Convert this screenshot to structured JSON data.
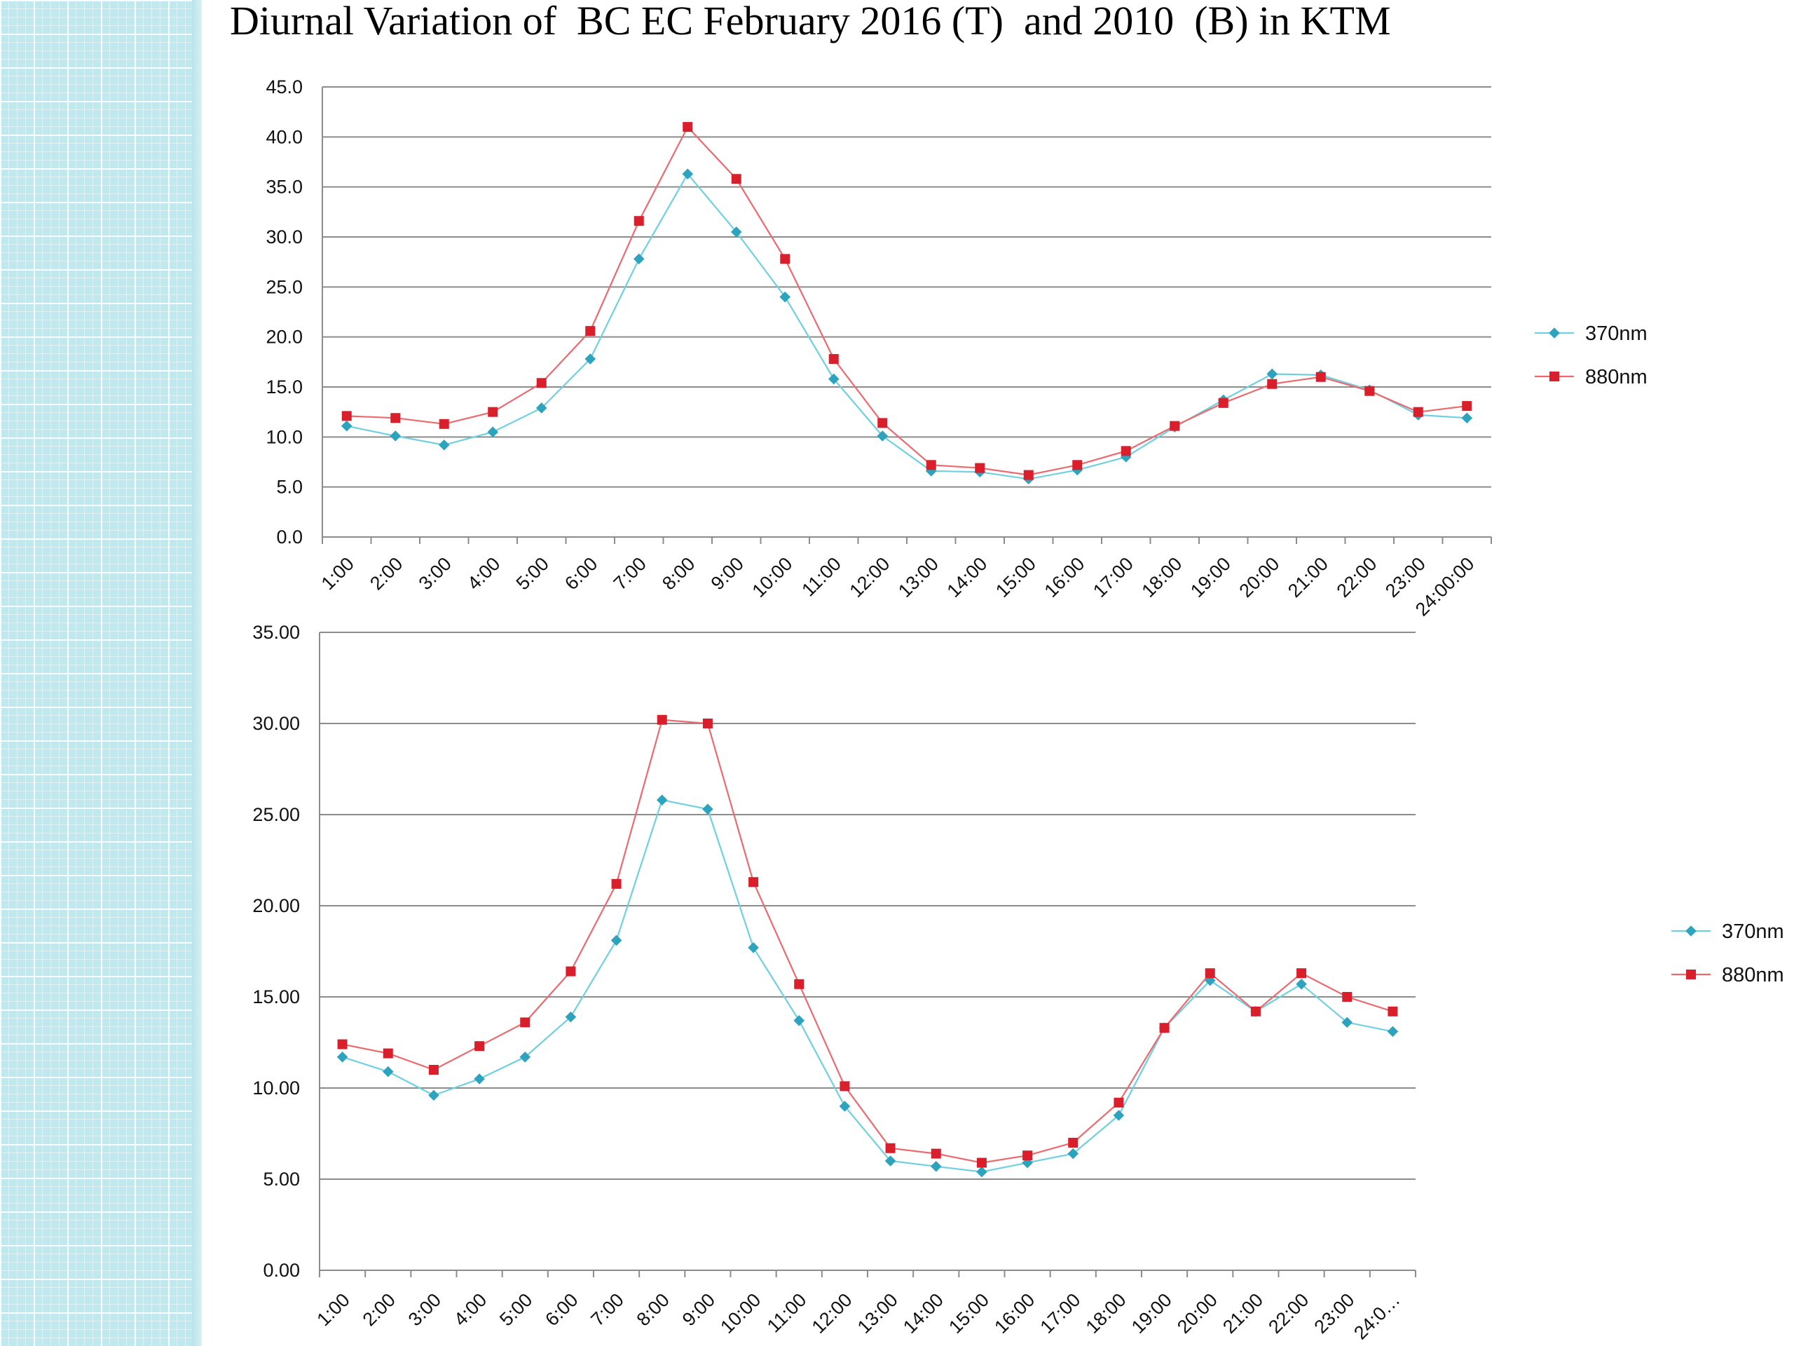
{
  "title": "Diurnal Variation of  BC EC February 2016 (T)  and 2010  (B) in KTM",
  "colors": {
    "s370": "#2ea3bd",
    "s370_line": "#6fd0e0",
    "s880": "#d91f2b",
    "s880_line": "#ec6a6f",
    "grid": "#8c8c8c",
    "sidebar": "#bfe9ef"
  },
  "chart_data": [
    {
      "type": "line",
      "title": "",
      "xlabel": "",
      "ylabel": "",
      "ylim": [
        0,
        45
      ],
      "grid": true,
      "legend": "right",
      "y_ticks": [
        "0.0",
        "5.0",
        "10.0",
        "15.0",
        "20.0",
        "25.0",
        "30.0",
        "35.0",
        "40.0",
        "45.0"
      ],
      "categories": [
        "1:00",
        "2:00",
        "3:00",
        "4:00",
        "5:00",
        "6:00",
        "7:00",
        "8:00",
        "9:00",
        "10:00",
        "11:00",
        "12:00",
        "13:00",
        "14:00",
        "15:00",
        "16:00",
        "17:00",
        "18:00",
        "19:00",
        "20:00",
        "21:00",
        "22:00",
        "23:00",
        "24:00:00"
      ],
      "series": [
        {
          "name": "370nm",
          "values": [
            11.1,
            10.1,
            9.2,
            10.5,
            12.9,
            17.8,
            27.8,
            36.3,
            30.5,
            24.0,
            15.8,
            10.1,
            6.6,
            6.5,
            5.8,
            6.7,
            8.0,
            11.0,
            13.7,
            16.3,
            16.2,
            14.7,
            12.2,
            11.9
          ]
        },
        {
          "name": "880nm",
          "values": [
            12.1,
            11.9,
            11.3,
            12.5,
            15.4,
            20.6,
            31.6,
            41.0,
            35.8,
            27.8,
            17.8,
            11.4,
            7.2,
            6.9,
            6.2,
            7.2,
            8.6,
            11.1,
            13.4,
            15.3,
            16.0,
            14.6,
            12.5,
            13.1
          ]
        }
      ]
    },
    {
      "type": "line",
      "title": "",
      "xlabel": "",
      "ylabel": "",
      "ylim": [
        0,
        35
      ],
      "grid": true,
      "legend": "right",
      "y_ticks": [
        "0.00",
        "5.00",
        "10.00",
        "15.00",
        "20.00",
        "25.00",
        "30.00",
        "35.00"
      ],
      "categories": [
        "1:00",
        "2:00",
        "3:00",
        "4:00",
        "5:00",
        "6:00",
        "7:00",
        "8:00",
        "9:00",
        "10:00",
        "11:00",
        "12:00",
        "13:00",
        "14:00",
        "15:00",
        "16:00",
        "17:00",
        "18:00",
        "19:00",
        "20:00",
        "21:00",
        "22:00",
        "23:00",
        "24:0…"
      ],
      "series": [
        {
          "name": "370nm",
          "values": [
            11.7,
            10.9,
            9.6,
            10.5,
            11.7,
            13.9,
            18.1,
            25.8,
            25.3,
            17.7,
            13.7,
            9.0,
            6.0,
            5.7,
            5.4,
            5.9,
            6.4,
            8.5,
            13.3,
            15.9,
            14.2,
            15.7,
            13.6,
            13.1
          ]
        },
        {
          "name": "880nm",
          "values": [
            12.4,
            11.9,
            11.0,
            12.3,
            13.6,
            16.4,
            21.2,
            30.2,
            30.0,
            21.3,
            15.7,
            10.1,
            6.7,
            6.4,
            5.9,
            6.3,
            7.0,
            9.2,
            13.3,
            16.3,
            14.2,
            16.3,
            15.0,
            14.2
          ]
        }
      ]
    }
  ]
}
